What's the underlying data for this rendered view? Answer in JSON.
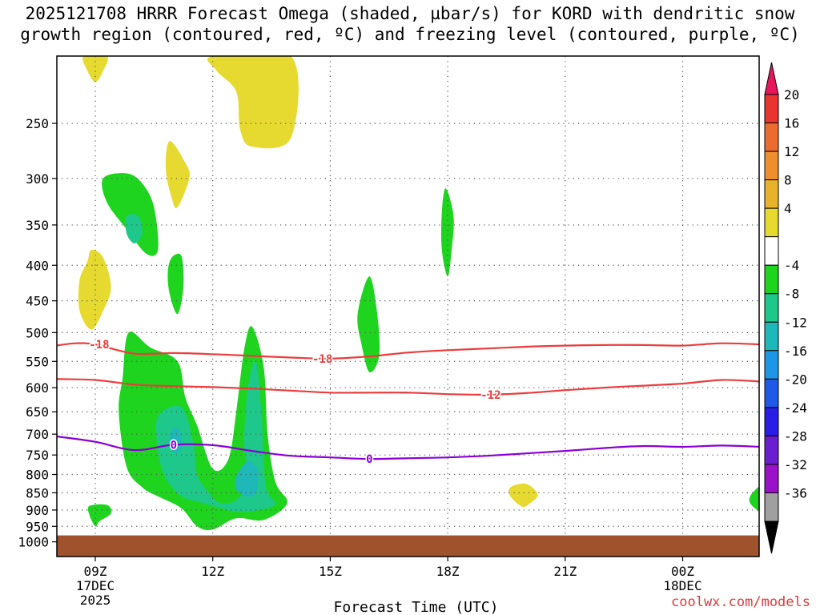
{
  "title_line1": "2025121708 HRRR Forecast Omega (shaded, µbar/s) for KORD with dendritic snow",
  "title_line2": "growth region (contoured, red, ºC) and freezing level (contoured, purple, ºC)",
  "watermark": "coolwx.com/models",
  "chart_data": {
    "type": "contour",
    "title": "2025121708 HRRR Forecast Omega (shaded, µbar/s) for KORD with dendritic snow growth region (contoured, red, ºC) and freezing level (contoured, purple, ºC)",
    "xlabel": "Forecast Time (UTC)",
    "ylabel": "",
    "x_ticks": [
      {
        "hour": 9,
        "lines": [
          "09Z",
          "17DEC",
          "2025"
        ]
      },
      {
        "hour": 12,
        "lines": [
          "12Z"
        ]
      },
      {
        "hour": 15,
        "lines": [
          "15Z"
        ]
      },
      {
        "hour": 18,
        "lines": [
          "18Z"
        ]
      },
      {
        "hour": 21,
        "lines": [
          "21Z"
        ]
      },
      {
        "hour": 24,
        "lines": [
          "00Z",
          "18DEC"
        ]
      }
    ],
    "xlim_hours": [
      8,
      26
    ],
    "y_scale": "log-pressure (reversed)",
    "ylim_hpa": [
      1050,
      200
    ],
    "y_ticks": [
      250,
      300,
      350,
      400,
      450,
      500,
      550,
      600,
      650,
      700,
      750,
      800,
      850,
      900,
      950,
      1000
    ],
    "grid": true,
    "colorbar": {
      "position": "right",
      "labels": [
        "20",
        "16",
        "12",
        "8",
        "4",
        "-4",
        "-8",
        "-12",
        "-16",
        "-20",
        "-24",
        "-28",
        "-32",
        "-36"
      ],
      "colors": [
        "#e8175d",
        "#e8352f",
        "#ec6b2f",
        "#ee8f2f",
        "#e8b32c",
        "#e6da31",
        "#ffffff",
        "#1ed41e",
        "#1ec88a",
        "#1eb8b8",
        "#1e96e6",
        "#1e5ae6",
        "#2a1ee6",
        "#6a1ed0",
        "#9a12c8",
        "#a0a0a0",
        "#000000"
      ]
    },
    "ground_color": "#a0522d",
    "ground_top_hpa": 1000,
    "contours": [
      {
        "label": "-18",
        "color": "#ee3b3b",
        "points": [
          [
            8,
            522
          ],
          [
            8.5,
            518
          ],
          [
            9,
            520
          ],
          [
            10,
            536
          ],
          [
            11,
            535
          ],
          [
            12,
            537
          ],
          [
            13,
            540
          ],
          [
            14,
            543
          ],
          [
            15,
            545
          ],
          [
            16,
            541
          ],
          [
            17,
            534
          ],
          [
            18,
            530
          ],
          [
            19,
            527
          ],
          [
            20,
            524
          ],
          [
            21,
            522
          ],
          [
            22,
            521
          ],
          [
            23,
            521
          ],
          [
            24,
            522
          ],
          [
            25,
            518
          ],
          [
            26,
            520
          ]
        ],
        "label_at": [
          [
            9.1,
            520
          ],
          [
            14.8,
            545
          ]
        ]
      },
      {
        "label": "-12",
        "color": "#ee3b3b",
        "points": [
          [
            8,
            583
          ],
          [
            9,
            585
          ],
          [
            10,
            594
          ],
          [
            11,
            597
          ],
          [
            12,
            599
          ],
          [
            13,
            602
          ],
          [
            14,
            606
          ],
          [
            15,
            610
          ],
          [
            16,
            610
          ],
          [
            17,
            610
          ],
          [
            18,
            613
          ],
          [
            19,
            614
          ],
          [
            20,
            611
          ],
          [
            21,
            605
          ],
          [
            22,
            600
          ],
          [
            23,
            596
          ],
          [
            24,
            592
          ],
          [
            25,
            585
          ],
          [
            26,
            588
          ]
        ],
        "label_at": [
          [
            19.1,
            614
          ]
        ]
      },
      {
        "label": "0",
        "color": "#8a00d4",
        "points": [
          [
            8,
            705
          ],
          [
            9,
            718
          ],
          [
            10,
            738
          ],
          [
            11,
            725
          ],
          [
            12,
            726
          ],
          [
            13,
            740
          ],
          [
            14,
            752
          ],
          [
            15,
            756
          ],
          [
            16,
            760
          ],
          [
            17,
            758
          ],
          [
            18,
            756
          ],
          [
            19,
            752
          ],
          [
            20,
            746
          ],
          [
            21,
            740
          ],
          [
            22,
            733
          ],
          [
            23,
            728
          ],
          [
            24,
            730
          ],
          [
            25,
            727
          ],
          [
            26,
            730
          ]
        ],
        "label_at": [
          [
            11,
            725
          ],
          [
            16,
            760
          ]
        ]
      }
    ],
    "omega_regions": [
      {
        "level": "-8",
        "color": "#1ed41e",
        "points": [
          [
            9.8,
            295
          ],
          [
            10.2,
            305
          ],
          [
            10.5,
            330
          ],
          [
            10.6,
            380
          ],
          [
            10.3,
            385
          ],
          [
            9.8,
            355
          ],
          [
            9.3,
            325
          ],
          [
            9.2,
            300
          ]
        ]
      },
      {
        "level": "-12",
        "color": "#1ec88a",
        "points": [
          [
            9.8,
            340
          ],
          [
            10.1,
            340
          ],
          [
            10.2,
            360
          ],
          [
            10,
            372
          ],
          [
            9.8,
            360
          ]
        ]
      },
      {
        "level": "-8",
        "color": "#1ed41e",
        "points": [
          [
            10.95,
            390
          ],
          [
            11.2,
            388
          ],
          [
            11.25,
            430
          ],
          [
            11.1,
            470
          ],
          [
            10.9,
            440
          ],
          [
            10.85,
            410
          ]
        ]
      },
      {
        "level": "-8",
        "color": "#1ed41e",
        "points": [
          [
            9.85,
            500
          ],
          [
            10.4,
            525
          ],
          [
            11.1,
            550
          ],
          [
            11.3,
            620
          ],
          [
            11.6,
            680
          ],
          [
            12,
            785
          ],
          [
            12.4,
            760
          ],
          [
            12.6,
            650
          ],
          [
            12.8,
            530
          ],
          [
            13,
            490
          ],
          [
            13.3,
            560
          ],
          [
            13.4,
            700
          ],
          [
            13.6,
            820
          ],
          [
            13.9,
            880
          ],
          [
            13.3,
            930
          ],
          [
            12.6,
            925
          ],
          [
            12,
            960
          ],
          [
            11.6,
            950
          ],
          [
            11.2,
            895
          ],
          [
            10.6,
            860
          ],
          [
            10.2,
            835
          ],
          [
            9.8,
            780
          ],
          [
            9.6,
            650
          ],
          [
            9.7,
            580
          ]
        ]
      },
      {
        "level": "-12",
        "color": "#1ec88a",
        "points": [
          [
            10.6,
            660
          ],
          [
            11.2,
            640
          ],
          [
            11.5,
            720
          ],
          [
            11.6,
            800
          ],
          [
            11.9,
            850
          ],
          [
            12.2,
            880
          ],
          [
            12.6,
            870
          ],
          [
            12.9,
            820
          ],
          [
            12.8,
            720
          ],
          [
            12.9,
            600
          ],
          [
            13.1,
            550
          ],
          [
            13.25,
            660
          ],
          [
            13.35,
            830
          ],
          [
            13.6,
            880
          ],
          [
            13.2,
            900
          ],
          [
            12.6,
            905
          ],
          [
            12.1,
            890
          ],
          [
            11.6,
            875
          ],
          [
            11.2,
            860
          ],
          [
            10.8,
            810
          ],
          [
            10.6,
            740
          ]
        ]
      },
      {
        "level": "-16",
        "color": "#1eb8b8",
        "points": [
          [
            10.95,
            690
          ],
          [
            11.15,
            690
          ],
          [
            11.2,
            730
          ],
          [
            11.05,
            745
          ],
          [
            10.9,
            725
          ]
        ]
      },
      {
        "level": "-16",
        "color": "#1eb8b8",
        "points": [
          [
            12.6,
            805
          ],
          [
            12.9,
            765
          ],
          [
            13.15,
            790
          ],
          [
            13.1,
            850
          ],
          [
            12.85,
            860
          ],
          [
            12.6,
            840
          ]
        ]
      },
      {
        "level": "-8",
        "color": "#1ed41e",
        "points": [
          [
            8.85,
            888
          ],
          [
            9.3,
            885
          ],
          [
            9.4,
            910
          ],
          [
            9.1,
            935
          ],
          [
            9,
            950
          ],
          [
            8.85,
            915
          ]
        ]
      },
      {
        "level": "-8",
        "color": "#1ed41e",
        "points": [
          [
            16,
            415
          ],
          [
            16.2,
            470
          ],
          [
            16.25,
            540
          ],
          [
            16,
            570
          ],
          [
            15.8,
            520
          ],
          [
            15.7,
            470
          ]
        ]
      },
      {
        "level": "-8",
        "color": "#1ed41e",
        "points": [
          [
            17.95,
            310
          ],
          [
            18.15,
            340
          ],
          [
            18.1,
            380
          ],
          [
            18,
            415
          ],
          [
            17.85,
            380
          ],
          [
            17.85,
            335
          ]
        ]
      },
      {
        "level": "-8",
        "color": "#1ed41e",
        "points": [
          [
            25.8,
            848
          ],
          [
            26,
            835
          ],
          [
            26,
            900
          ],
          [
            25.8,
            890
          ],
          [
            25.7,
            870
          ]
        ]
      },
      {
        "level": "4",
        "color": "#e6da31",
        "points": [
          [
            8.7,
            200
          ],
          [
            9.3,
            200
          ],
          [
            9.2,
            210
          ],
          [
            9.0,
            218
          ],
          [
            8.8,
            210
          ]
        ]
      },
      {
        "level": "4",
        "color": "#e6da31",
        "points": [
          [
            12,
            200
          ],
          [
            14,
            200
          ],
          [
            14,
            262
          ],
          [
            13,
            270
          ],
          [
            12.7,
            255
          ],
          [
            12.6,
            225
          ],
          [
            12.1,
            210
          ]
        ]
      },
      {
        "level": "4",
        "color": "#e6da31",
        "points": [
          [
            10.9,
            265
          ],
          [
            11.3,
            285
          ],
          [
            11.4,
            300
          ],
          [
            11.1,
            330
          ],
          [
            10.95,
            320
          ],
          [
            10.8,
            290
          ]
        ]
      },
      {
        "level": "4",
        "color": "#e6da31",
        "points": [
          [
            8.9,
            380
          ],
          [
            9.2,
            390
          ],
          [
            9.4,
            430
          ],
          [
            9.2,
            465
          ],
          [
            8.9,
            495
          ],
          [
            8.6,
            465
          ],
          [
            8.6,
            420
          ],
          [
            8.8,
            395
          ]
        ]
      },
      {
        "level": "4",
        "color": "#e6da31",
        "points": [
          [
            19.6,
            835
          ],
          [
            20.0,
            825
          ],
          [
            20.3,
            855
          ],
          [
            20.1,
            880
          ],
          [
            19.9,
            890
          ],
          [
            19.6,
            860
          ]
        ]
      }
    ]
  }
}
